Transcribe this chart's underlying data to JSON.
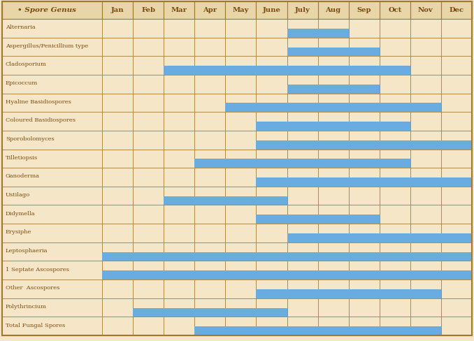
{
  "months": [
    "Jan",
    "Feb",
    "Mar",
    "Apr",
    "May",
    "June",
    "July",
    "Aug",
    "Sep",
    "Oct",
    "Nov",
    "Dec"
  ],
  "genera": [
    "Alternaria",
    "Aspergillus/Penicillium type",
    "Cladosporium",
    "Epicoccum",
    "Hyaline Basidiospores",
    "Coloured Basidiospores",
    "Sporobolomyces",
    "Tilletiopsis",
    "Ganoderma",
    "Ustilago",
    "Didymella",
    "Erysiphe",
    "Leptosphaeria",
    "1 Septate Ascospores",
    "Other  Ascospores",
    "Polythrincium",
    "Total Fungal Spores"
  ],
  "active_months": {
    "Alternaria": [
      7,
      8
    ],
    "Aspergillus/Penicillium type": [
      7,
      8,
      9
    ],
    "Cladosporium": [
      3,
      4,
      5,
      6,
      7,
      8,
      9,
      10
    ],
    "Epicoccum": [
      7,
      8,
      9
    ],
    "Hyaline Basidiospores": [
      5,
      6,
      7,
      8,
      9,
      10,
      11
    ],
    "Coloured Basidiospores": [
      6,
      7,
      8,
      9,
      10
    ],
    "Sporobolomyces": [
      6,
      7,
      8,
      9,
      10,
      11,
      12
    ],
    "Tilletiopsis": [
      4,
      5,
      6,
      7,
      8,
      9,
      10
    ],
    "Ganoderma": [
      6,
      7,
      8,
      9,
      10,
      11,
      12
    ],
    "Ustilago": [
      3,
      4,
      5,
      6
    ],
    "Didymella": [
      6,
      7,
      8,
      9
    ],
    "Erysiphe": [
      7,
      8,
      9,
      10,
      11,
      12
    ],
    "Leptosphaeria": [
      1,
      2,
      3,
      4,
      5,
      6,
      7,
      8,
      9,
      10,
      11,
      12
    ],
    "1 Septate Ascospores": [
      1,
      2,
      3,
      4,
      5,
      6,
      7,
      8,
      9,
      10,
      11,
      12
    ],
    "Other  Ascospores": [
      6,
      7,
      8,
      9,
      10,
      11
    ],
    "Polythrincium": [
      2,
      3,
      4,
      5,
      6
    ],
    "Total Fungal Spores": [
      4,
      5,
      6,
      7,
      8,
      9,
      10,
      11
    ]
  },
  "bar_color": "#6aace0",
  "bg_color": "#f5e6c8",
  "header_bg": "#e8d5a8",
  "grid_color": "#a07830",
  "label_color": "#7a4b10",
  "header_label_color": "#7a4b10"
}
